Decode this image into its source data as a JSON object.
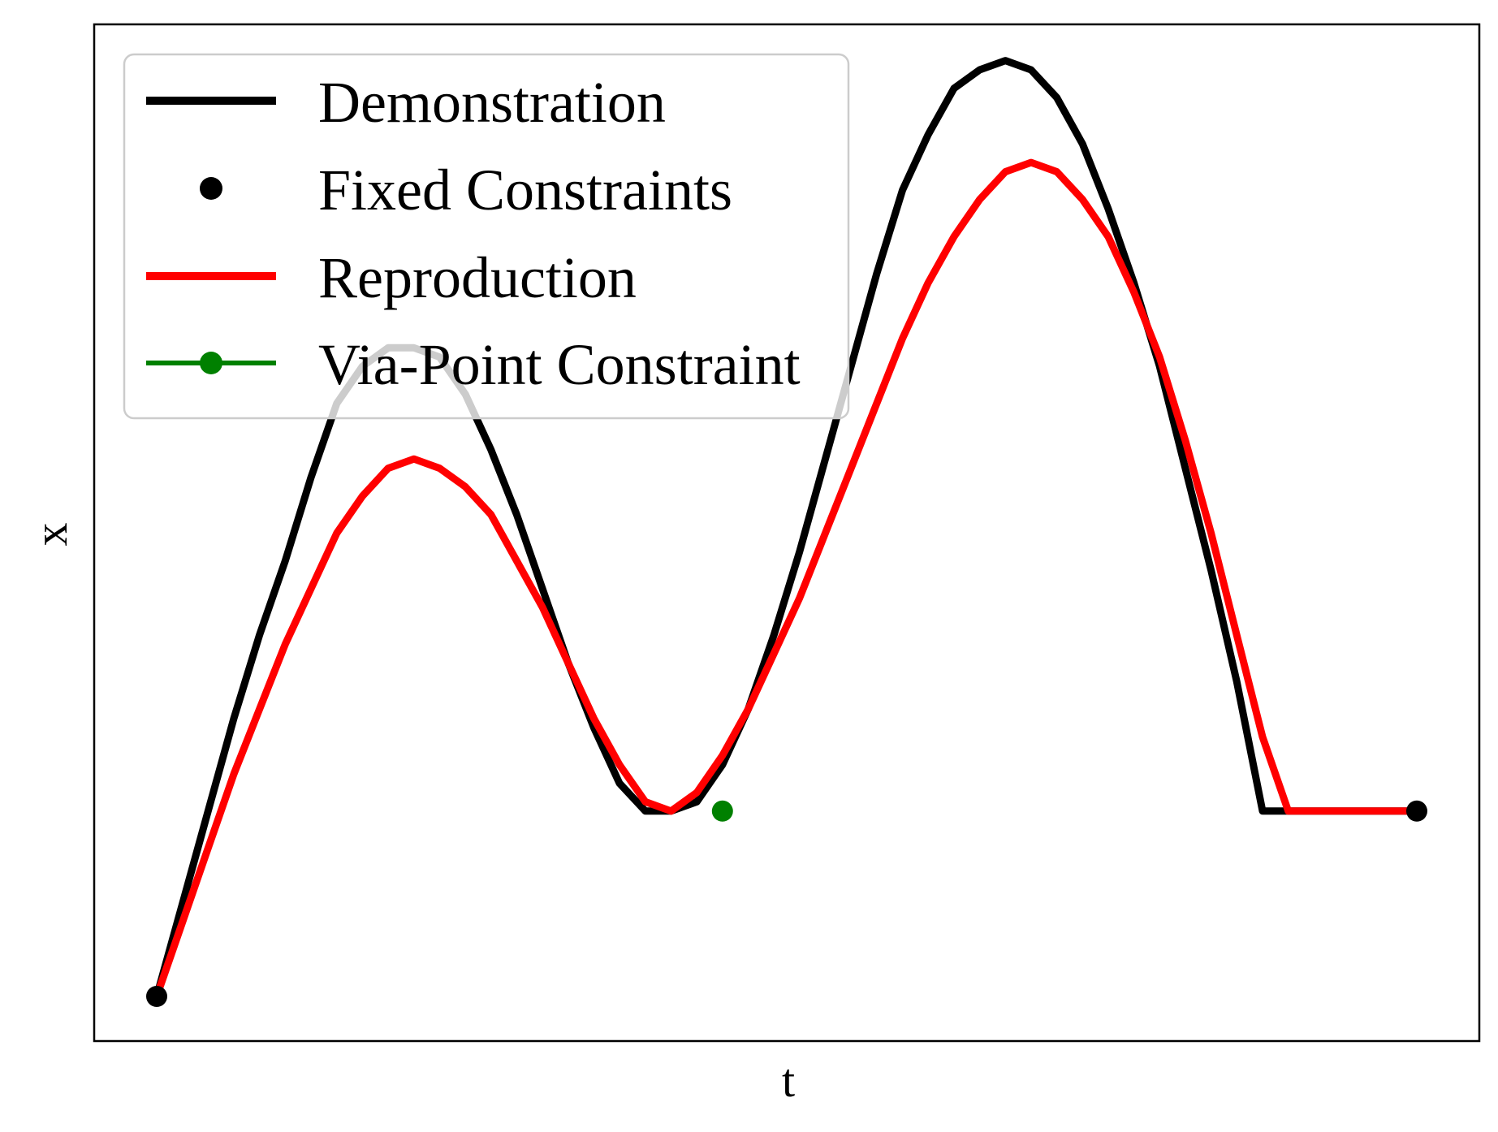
{
  "chart_data": {
    "type": "line",
    "title": "",
    "xlabel": "t",
    "ylabel": "x",
    "xticks_visible": false,
    "yticks_visible": false,
    "grid": false,
    "legend_position": "top-left",
    "xlim": [
      0,
      1
    ],
    "ylim": [
      -0.155,
      1.0
    ],
    "series": [
      {
        "name": "Demonstration",
        "kind": "line",
        "color": "#000000",
        "x": [
          0.0,
          0.0204,
          0.0408,
          0.0612,
          0.0816,
          0.102,
          0.1224,
          0.1429,
          0.1633,
          0.1837,
          0.2041,
          0.2245,
          0.2449,
          0.2653,
          0.2857,
          0.3061,
          0.3265,
          0.3469,
          0.3673,
          0.3878,
          0.4082,
          0.4286,
          0.449,
          0.4694,
          0.4898,
          0.5102,
          0.5306,
          0.551,
          0.5714,
          0.5918,
          0.6122,
          0.6327,
          0.6531,
          0.6735,
          0.6939,
          0.7143,
          0.7347,
          0.7551,
          0.7755,
          0.7959,
          0.8163,
          0.8367,
          0.8571,
          0.8776,
          0.898,
          0.9184,
          0.9388,
          0.9592,
          0.9796,
          1.0
        ],
        "y": [
          0.0,
          0.1,
          0.2,
          0.3,
          0.39,
          0.47,
          0.56,
          0.64,
          0.68,
          0.7,
          0.7,
          0.69,
          0.65,
          0.59,
          0.52,
          0.44,
          0.36,
          0.29,
          0.23,
          0.2,
          0.2,
          0.21,
          0.25,
          0.31,
          0.39,
          0.48,
          0.58,
          0.68,
          0.78,
          0.87,
          0.93,
          0.98,
          1.0,
          1.01,
          1.0,
          0.97,
          0.92,
          0.85,
          0.77,
          0.68,
          0.57,
          0.46,
          0.34,
          0.2,
          0.2,
          0.2,
          0.2,
          0.2,
          0.2,
          0.2
        ]
      },
      {
        "name": "Fixed Constraints",
        "kind": "scatter",
        "color": "#000000",
        "x": [
          0.0,
          1.0
        ],
        "y": [
          0.0,
          0.2
        ]
      },
      {
        "name": "Reproduction",
        "kind": "line",
        "color": "#ff0000",
        "x": [
          0.0,
          0.0204,
          0.0408,
          0.0612,
          0.0816,
          0.102,
          0.1224,
          0.1429,
          0.1633,
          0.1837,
          0.2041,
          0.2245,
          0.2449,
          0.2653,
          0.2857,
          0.3061,
          0.3265,
          0.3469,
          0.3673,
          0.3878,
          0.4082,
          0.4286,
          0.449,
          0.4694,
          0.4898,
          0.5102,
          0.5306,
          0.551,
          0.5714,
          0.5918,
          0.6122,
          0.6327,
          0.6531,
          0.6735,
          0.6939,
          0.7143,
          0.7347,
          0.7551,
          0.7755,
          0.7959,
          0.8163,
          0.8367,
          0.8571,
          0.8776,
          0.898,
          0.9184,
          0.9388,
          0.9592,
          0.9796,
          1.0
        ],
        "y": [
          0.0,
          0.08,
          0.16,
          0.24,
          0.31,
          0.38,
          0.44,
          0.5,
          0.54,
          0.57,
          0.58,
          0.57,
          0.55,
          0.52,
          0.47,
          0.42,
          0.36,
          0.3,
          0.25,
          0.21,
          0.2,
          0.22,
          0.26,
          0.31,
          0.37,
          0.43,
          0.5,
          0.57,
          0.64,
          0.71,
          0.77,
          0.82,
          0.86,
          0.89,
          0.9,
          0.89,
          0.86,
          0.82,
          0.76,
          0.69,
          0.6,
          0.5,
          0.39,
          0.28,
          0.2,
          0.2,
          0.2,
          0.2,
          0.2,
          0.2
        ]
      },
      {
        "name": "Via-Point Constraint",
        "kind": "line-marker",
        "color": "#008000",
        "x": [
          0.449
        ],
        "y": [
          0.2
        ]
      }
    ]
  }
}
